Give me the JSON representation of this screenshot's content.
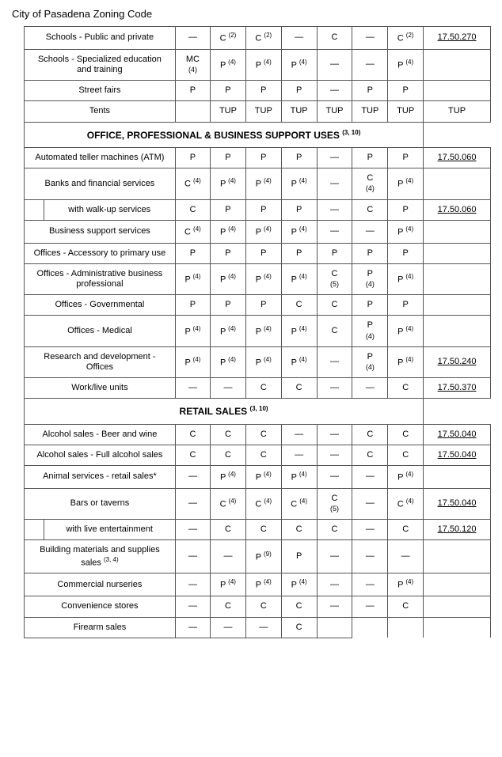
{
  "header": "City of Pasadena Zoning Code",
  "sections": [
    {
      "rows": [
        {
          "label": "Schools - Public and private",
          "sub": false,
          "c": [
            "—",
            "C",
            "C",
            "—",
            "C",
            "—",
            "C"
          ],
          "cs": [
            "",
            "(2)",
            "(2)",
            "",
            "",
            "",
            "(2)"
          ],
          "ref": "17.50.270",
          "u": true
        },
        {
          "label": "Schools - Specialized education and training",
          "sub": false,
          "c": [
            "MC",
            "P",
            "P",
            "P",
            "—",
            "—",
            "P"
          ],
          "cs": [
            "(4)",
            "(4)",
            "(4)",
            "(4)",
            "",
            "",
            "(4)"
          ],
          "ref": "",
          "u": false
        },
        {
          "label": "Street fairs",
          "sub": false,
          "c": [
            "P",
            "P",
            "P",
            "P",
            "—",
            "P",
            "P"
          ],
          "cs": [
            "",
            "",
            "",
            "",
            "",
            "",
            ""
          ],
          "ref": "",
          "u": false
        },
        {
          "label": "Tents",
          "sub": false,
          "c": [
            "",
            "TUP",
            "TUP",
            "TUP",
            "TUP",
            "TUP",
            "TUP"
          ],
          "cs": [
            "",
            "",
            "",
            "",
            "",
            "",
            ""
          ],
          "ref": "TUP",
          "u": false
        }
      ]
    },
    {
      "title": "OFFICE, PROFESSIONAL & BUSINESS SUPPORT USES",
      "titlesup": "(3, 10)",
      "rows": [
        {
          "label": "Automated teller machines (ATM)",
          "sub": false,
          "c": [
            "P",
            "P",
            "P",
            "P",
            "—",
            "P",
            "P"
          ],
          "cs": [
            "",
            "",
            "",
            "",
            "",
            "",
            ""
          ],
          "ref": "17.50.060",
          "u": true
        },
        {
          "label": "Banks and financial services",
          "sub": false,
          "c": [
            "C",
            "P",
            "P",
            "P",
            "—",
            "C",
            "P"
          ],
          "cs": [
            "(4)",
            "(4)",
            "(4)",
            "(4)",
            "",
            "(4)",
            "(4)"
          ],
          "ref": "",
          "u": false
        },
        {
          "label": "with walk-up services",
          "sub": true,
          "c": [
            "C",
            "P",
            "P",
            "P",
            "—",
            "C",
            "P"
          ],
          "cs": [
            "",
            "",
            "",
            "",
            "",
            "",
            ""
          ],
          "ref": "17.50.060",
          "u": true
        },
        {
          "label": "Business support services",
          "sub": false,
          "c": [
            "C",
            "P",
            "P",
            "P",
            "—",
            "—",
            "P"
          ],
          "cs": [
            "(4)",
            "(4)",
            "(4)",
            "(4)",
            "",
            "",
            "(4)"
          ],
          "ref": "",
          "u": false
        },
        {
          "label": "Offices - Accessory to primary use",
          "sub": false,
          "c": [
            "P",
            "P",
            "P",
            "P",
            "P",
            "P",
            "P"
          ],
          "cs": [
            "",
            "",
            "",
            "",
            "",
            "",
            ""
          ],
          "ref": "",
          "u": false
        },
        {
          "label": "Offices - Administrative business professional",
          "sub": false,
          "c": [
            "P",
            "P",
            "P",
            "P",
            "C",
            "P",
            "P"
          ],
          "cs": [
            "(4)",
            "(4)",
            "(4)",
            "(4)",
            "(5)",
            "(4)",
            "(4)"
          ],
          "ref": "",
          "u": false
        },
        {
          "label": "Offices - Governmental",
          "sub": false,
          "c": [
            "P",
            "P",
            "P",
            "C",
            "C",
            "P",
            "P"
          ],
          "cs": [
            "",
            "",
            "",
            "",
            "",
            "",
            ""
          ],
          "ref": "",
          "u": false
        },
        {
          "label": "Offices - Medical",
          "sub": false,
          "c": [
            "P",
            "P",
            "P",
            "P",
            "C",
            "P",
            "P"
          ],
          "cs": [
            "(4)",
            "(4)",
            "(4)",
            "(4)",
            "",
            "(4)",
            "(4)"
          ],
          "ref": "",
          "u": false
        },
        {
          "label": "Research and development - Offices",
          "sub": false,
          "c": [
            "P",
            "P",
            "P",
            "P",
            "—",
            "P",
            "P"
          ],
          "cs": [
            "(4)",
            "(4)",
            "(4)",
            "(4)",
            "",
            "(4)",
            "(4)"
          ],
          "ref": "17.50.240",
          "u": true
        },
        {
          "label": "Work/live units",
          "sub": false,
          "c": [
            "—",
            "—",
            "C",
            "C",
            "—",
            "—",
            "C"
          ],
          "cs": [
            "",
            "",
            "",
            "",
            "",
            "",
            ""
          ],
          "ref": "17.50.370",
          "u": true
        }
      ]
    },
    {
      "title": "RETAIL SALES",
      "titlesup": "(3, 10)",
      "rows": [
        {
          "label": "Alcohol sales - Beer and wine",
          "sub": false,
          "c": [
            "C",
            "C",
            "C",
            "—",
            "—",
            "C",
            "C"
          ],
          "cs": [
            "",
            "",
            "",
            "",
            "",
            "",
            ""
          ],
          "ref": "17.50.040",
          "u": true
        },
        {
          "label": "Alcohol sales - Full alcohol sales",
          "sub": false,
          "c": [
            "C",
            "C",
            "C",
            "—",
            "—",
            "C",
            "C"
          ],
          "cs": [
            "",
            "",
            "",
            "",
            "",
            "",
            ""
          ],
          "ref": "17.50.040",
          "u": true
        },
        {
          "label": "Animal services - retail sales*",
          "sub": false,
          "c": [
            "—",
            "P",
            "P",
            "P",
            "—",
            "—",
            "P"
          ],
          "cs": [
            "",
            "(4)",
            "(4)",
            "(4)",
            "",
            "",
            "(4)"
          ],
          "ref": "",
          "u": false
        },
        {
          "label": "Bars or taverns",
          "sub": false,
          "c": [
            "—",
            "C",
            "C",
            "C",
            "C",
            "—",
            "C"
          ],
          "cs": [
            "",
            "(4)",
            "(4)",
            "(4)",
            "(5)",
            "",
            "(4)"
          ],
          "ref": "17.50.040",
          "u": true
        },
        {
          "label": "with live entertainment",
          "sub": true,
          "c": [
            "—",
            "C",
            "C",
            "C",
            "C",
            "—",
            "C"
          ],
          "cs": [
            "",
            "",
            "",
            "",
            "",
            "",
            ""
          ],
          "ref": "17.50.120",
          "u": true
        },
        {
          "label": "Building materials and supplies sales",
          "labelSup": "(3, 4)",
          "sub": false,
          "c": [
            "—",
            "—",
            "P",
            "P",
            "—",
            "—",
            "—"
          ],
          "cs": [
            "",
            "",
            "(9)",
            "",
            "",
            "",
            ""
          ],
          "ref": "",
          "u": false
        },
        {
          "label": "Commercial nurseries",
          "sub": false,
          "c": [
            "—",
            "P",
            "P",
            "P",
            "—",
            "—",
            "P"
          ],
          "cs": [
            "",
            "(4)",
            "(4)",
            "(4)",
            "",
            "",
            "(4)"
          ],
          "ref": "",
          "u": false
        },
        {
          "label": "Convenience stores",
          "sub": false,
          "c": [
            "—",
            "C",
            "C",
            "C",
            "—",
            "—",
            "C"
          ],
          "cs": [
            "",
            "",
            "",
            "",
            "",
            "",
            ""
          ],
          "ref": "",
          "u": false
        },
        {
          "label": "Firearm sales",
          "sub": false,
          "c": [
            "—",
            "—",
            "—",
            "C",
            "",
            "",
            ""
          ],
          "cs": [
            "",
            "",
            "",
            "",
            "",
            "",
            ""
          ],
          "ref": "",
          "u": false,
          "open": true
        }
      ]
    }
  ]
}
